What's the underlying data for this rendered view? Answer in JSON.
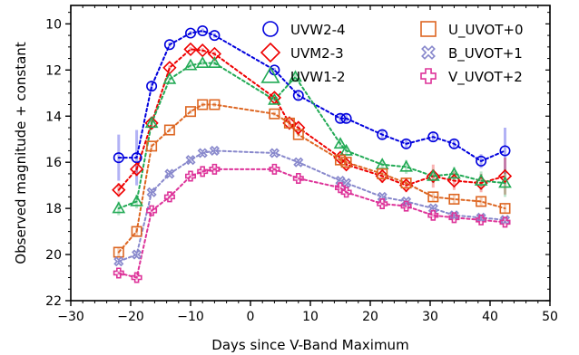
{
  "chart_data": {
    "type": "scatter",
    "title": "",
    "xlabel": "Days since V-Band Maximum",
    "ylabel": "Observed magnitude + constant",
    "xlim": [
      -30,
      50
    ],
    "ylim": [
      22,
      9.2
    ],
    "y_inverted": true,
    "x_ticks": [
      -30,
      -20,
      -10,
      0,
      10,
      20,
      30,
      40,
      50
    ],
    "y_ticks": [
      10,
      12,
      14,
      16,
      18,
      20,
      22
    ],
    "x_tick_labels": [
      "−30",
      "−20",
      "−10",
      "0",
      "10",
      "20",
      "30",
      "40",
      "50"
    ],
    "y_tick_labels": [
      "10",
      "12",
      "14",
      "16",
      "18",
      "20",
      "22"
    ],
    "grid": false,
    "legend_position": "top-right",
    "series": [
      {
        "name": "UVW2-4",
        "color": "#0000dd",
        "marker": "circle",
        "line": "dashed",
        "x": [
          -22,
          -19,
          -16.5,
          -13.5,
          -10,
          -8,
          -6,
          4,
          8,
          15,
          16,
          22,
          26,
          30.5,
          34,
          38.5,
          42.5
        ],
        "y": [
          15.8,
          15.8,
          12.7,
          10.9,
          10.4,
          10.3,
          10.5,
          12.0,
          13.1,
          14.1,
          14.1,
          14.8,
          15.2,
          14.9,
          15.2,
          15.95,
          15.5
        ],
        "yerr": [
          1.0,
          1.2,
          0.2,
          0.1,
          0.1,
          0.1,
          0.1,
          0.1,
          0.2,
          0.2,
          0.2,
          0.2,
          0.2,
          0.2,
          0.2,
          0.3,
          1.0
        ]
      },
      {
        "name": "UVM2-3",
        "color": "#ee0000",
        "marker": "diamond",
        "line": "dashed",
        "x": [
          -22,
          -19,
          -16.5,
          -13.5,
          -10,
          -8,
          -6,
          4,
          6.5,
          8,
          15,
          16,
          22,
          26,
          30.5,
          34,
          38.5,
          42.5
        ],
        "y": [
          17.2,
          16.3,
          14.3,
          11.9,
          11.1,
          11.15,
          11.3,
          13.2,
          14.3,
          14.5,
          15.8,
          16.1,
          16.6,
          17.0,
          16.6,
          16.8,
          16.9,
          16.6
        ],
        "yerr": [
          0.3,
          0.3,
          0.2,
          0.1,
          0.1,
          0.1,
          0.1,
          0.1,
          0.2,
          0.2,
          0.2,
          0.2,
          0.3,
          0.3,
          0.5,
          0.4,
          0.4,
          0.8
        ]
      },
      {
        "name": "UVW1-2",
        "color": "#22aa55",
        "marker": "triangle",
        "line": "dashed",
        "x": [
          -22,
          -19,
          -16.5,
          -13.5,
          -10,
          -8,
          -6,
          4,
          7.5,
          15,
          16,
          22,
          26,
          30.5,
          34,
          38.5,
          42.5
        ],
        "y": [
          18.0,
          17.7,
          14.3,
          12.4,
          11.8,
          11.7,
          11.7,
          13.3,
          12.3,
          15.2,
          15.5,
          16.1,
          16.2,
          16.6,
          16.5,
          16.8,
          16.9
        ],
        "yerr": [
          0.3,
          0.3,
          0.2,
          0.1,
          0.1,
          0.1,
          0.1,
          0.1,
          0.2,
          0.2,
          0.2,
          0.2,
          0.3,
          0.3,
          0.3,
          0.4,
          0.6
        ]
      },
      {
        "name": "U_UVOT+0",
        "color": "#dd6622",
        "marker": "square",
        "line": "dashed",
        "x": [
          -22,
          -19,
          -16.5,
          -13.5,
          -10,
          -8,
          -6,
          4,
          6.5,
          8,
          15,
          16,
          22,
          26,
          30.5,
          34,
          38.5,
          42.5
        ],
        "y": [
          19.9,
          19.0,
          15.3,
          14.6,
          13.8,
          13.5,
          13.5,
          13.9,
          14.3,
          14.8,
          15.9,
          16.0,
          16.5,
          16.9,
          17.5,
          17.6,
          17.7,
          18.0
        ],
        "yerr": [
          0.2,
          0.2,
          0.1,
          0.1,
          0.1,
          0.1,
          0.1,
          0.1,
          0.1,
          0.1,
          0.1,
          0.1,
          0.1,
          0.1,
          0.2,
          0.2,
          0.2,
          0.2
        ]
      },
      {
        "name": "B_UVOT+1",
        "color": "#8888cc",
        "marker": "x",
        "line": "dashed",
        "x": [
          -22,
          -19,
          -16.5,
          -13.5,
          -10,
          -8,
          -6,
          4,
          8,
          15,
          16,
          22,
          26,
          30.5,
          34,
          38.5,
          42.5
        ],
        "y": [
          20.3,
          20.0,
          17.3,
          16.5,
          15.9,
          15.6,
          15.5,
          15.6,
          16.0,
          16.8,
          16.9,
          17.5,
          17.7,
          18.0,
          18.3,
          18.4,
          18.5
        ],
        "yerr": [
          0.1,
          0.1,
          0.1,
          0.1,
          0.1,
          0.1,
          0.1,
          0.1,
          0.1,
          0.1,
          0.1,
          0.1,
          0.1,
          0.1,
          0.1,
          0.1,
          0.1
        ]
      },
      {
        "name": "V_UVOT+2",
        "color": "#dd3399",
        "marker": "plus",
        "line": "dashed",
        "x": [
          -22,
          -19,
          -16.5,
          -13.5,
          -10,
          -8,
          -6,
          4,
          8,
          15,
          16,
          22,
          26,
          30.5,
          34,
          38.5,
          42.5
        ],
        "y": [
          20.8,
          21.0,
          18.1,
          17.5,
          16.6,
          16.4,
          16.3,
          16.3,
          16.7,
          17.1,
          17.3,
          17.8,
          17.9,
          18.3,
          18.4,
          18.5,
          18.6
        ],
        "yerr": [
          0.1,
          0.1,
          0.1,
          0.1,
          0.1,
          0.1,
          0.1,
          0.1,
          0.1,
          0.1,
          0.1,
          0.1,
          0.1,
          0.1,
          0.1,
          0.1,
          0.1
        ]
      }
    ]
  }
}
